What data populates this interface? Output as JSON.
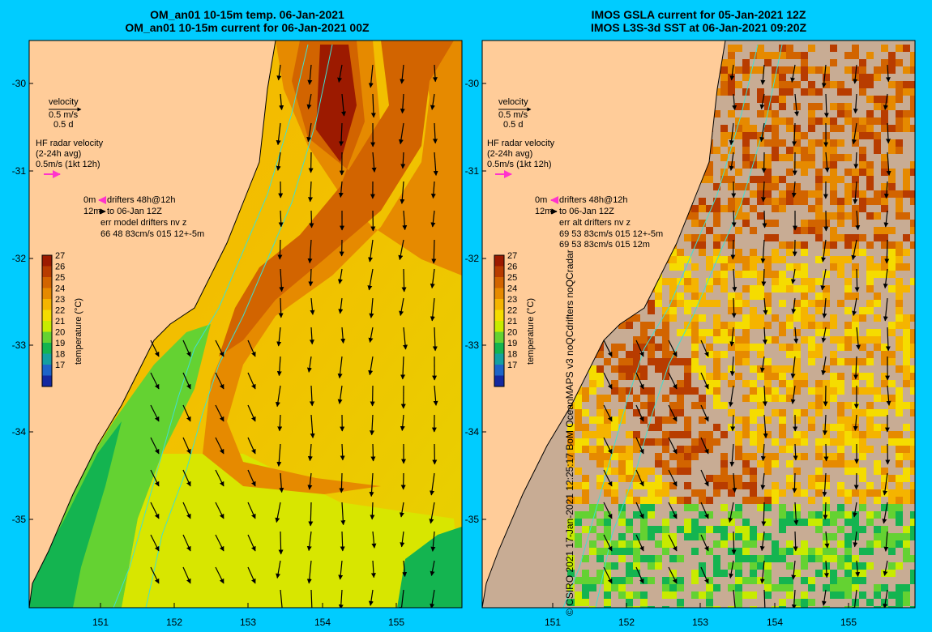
{
  "left_panel": {
    "title_line1": "OM_an01 10-15m temp. 06-Jan-2021",
    "title_line2": "OM_an01 10-15m current for 06-Jan-2021 00Z",
    "velocity_label": "velocity",
    "velocity_scale": "0.5 m/s",
    "velocity_time": "0.5 d",
    "hf_label": "HF radar velocity",
    "hf_avg": "(2-24h avg)",
    "hf_scale": "0.5m/s (1kt 12h)",
    "drifters_line1": "0m",
    "drifters_line1b": "drifters 48h@12h",
    "drifters_line2": "12m",
    "drifters_line2b": "to 06-Jan 12Z",
    "err_line1": "err model drifters nv z",
    "err_line2": "66 48 83cm/s 015 12+-5m"
  },
  "right_panel": {
    "title_line1": "IMOS GSLA current for 05-Jan-2021 12Z",
    "title_line2": "IMOS L3S-3d SST at 06-Jan-2021 09:20Z",
    "velocity_label": "velocity",
    "velocity_scale": "0.5 m/s",
    "velocity_time": "0.5 d",
    "hf_label": "HF radar velocity",
    "hf_avg": "(2-24h avg)",
    "hf_scale": "0.5m/s (1kt 12h)",
    "drifters_line1": "0m",
    "drifters_line1b": "drifters 48h@12h",
    "drifters_line2": "12m",
    "drifters_line2b": "to 06-Jan 12Z",
    "err_line1": "err alt drifters nv z",
    "err_line2": "69 53 83cm/s 015 12+-5m",
    "err_line3": "69 53 83cm/s 015 12m"
  },
  "colorbar": {
    "label": "temperature (°C)",
    "ticks": [
      "27",
      "26",
      "25",
      "24",
      "23",
      "22",
      "21",
      "20",
      "19",
      "18",
      "17"
    ],
    "colors": [
      "#9c1a00",
      "#b83c00",
      "#d26400",
      "#e68a00",
      "#f5b400",
      "#f5dc00",
      "#c8eb00",
      "#64d232",
      "#14b450",
      "#14a0a0",
      "#1e64c8",
      "#1428a0"
    ]
  },
  "axes": {
    "lat_ticks": [
      "-30",
      "-31",
      "-32",
      "-33",
      "-34",
      "-35"
    ],
    "lon_ticks": [
      "151",
      "152",
      "153",
      "154",
      "155"
    ]
  },
  "side_text": "© CSIRO 2021   17-Jan-2021 12:25:17 BoM OceanMAPS v3 noQCdrifters noQCradar",
  "colors": {
    "land": "#ffcc99",
    "missing": "#c8ac94",
    "background": "#00ccff"
  }
}
